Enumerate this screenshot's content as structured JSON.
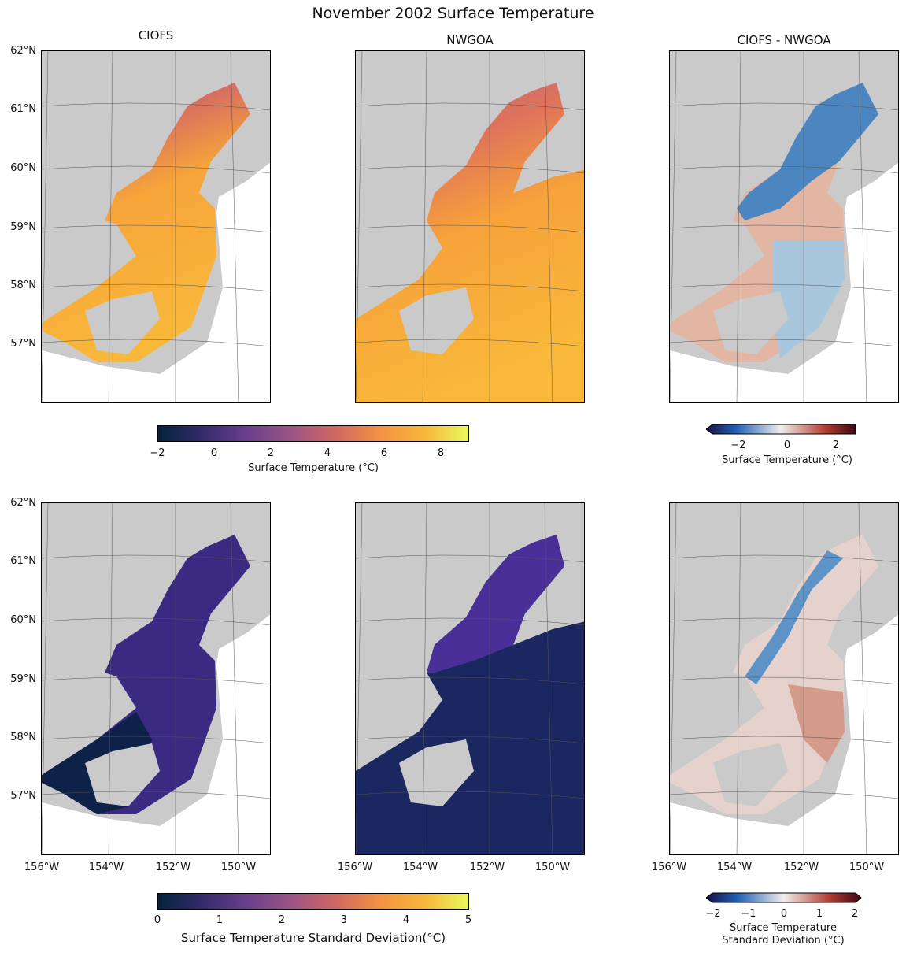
{
  "title": "November 2002 Surface Temperature",
  "columns": {
    "ciofs": "CIOFS",
    "nwgoa": "NWGOA",
    "diff": "CIOFS - NWGOA"
  },
  "latitudes": [
    "62°N",
    "61°N",
    "60°N",
    "59°N",
    "58°N",
    "57°N"
  ],
  "longitudes": [
    "156°W",
    "154°W",
    "152°W",
    "150°W"
  ],
  "colorbars": {
    "temp": {
      "ticks": [
        "−2",
        "0",
        "2",
        "4",
        "6",
        "8"
      ],
      "label": "Surface Temperature (°C)",
      "range": [
        -2,
        9
      ]
    },
    "temp_diff": {
      "ticks": [
        "−2",
        "0",
        "2"
      ],
      "label": "Surface Temperature (°C)",
      "range": [
        -3,
        3
      ]
    },
    "std": {
      "ticks": [
        "0",
        "1",
        "2",
        "3",
        "4",
        "5"
      ],
      "label": "Surface Temperature Standard Deviation(°C)",
      "range": [
        0,
        5
      ]
    },
    "std_diff": {
      "ticks": [
        "−2",
        "−1",
        "0",
        "1",
        "2"
      ],
      "label_line1": "Surface Temperature",
      "label_line2": "Standard Deviation (°C)",
      "range": [
        -2,
        2
      ]
    }
  },
  "colors": {
    "land": "#cacaca",
    "thermal_low": "#04233d",
    "thermal_mid": "#b15f82",
    "thermal_high": "#e8f95c",
    "balance_low": "#17103f",
    "balance_mid": "#f1eeec",
    "balance_high": "#3c0912"
  }
}
